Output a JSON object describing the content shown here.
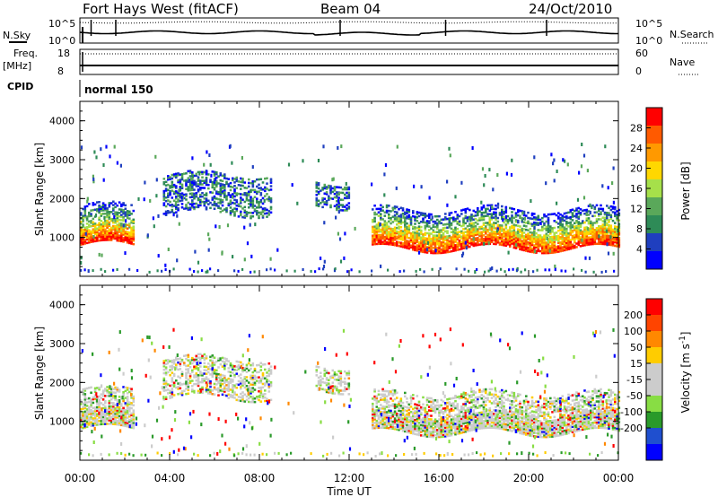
{
  "header": {
    "station": "Fort Hays West (fitACF)",
    "beam": "Beam 04",
    "date": "24/Oct/2010"
  },
  "noise_panel": {
    "left_label": "N.Sky",
    "right_label": "N.Search",
    "left_ticks": [
      "10^5",
      "10^0"
    ],
    "right_ticks": [
      "10^5",
      "10^0"
    ]
  },
  "freq_panel": {
    "left_label": "Freq.",
    "left_unit": "[MHz]",
    "right_label": "Nave",
    "left_ticks": [
      "18",
      "8"
    ],
    "right_ticks": [
      "60",
      "0"
    ]
  },
  "cpid": {
    "label": "CPID",
    "program": "normal 150"
  },
  "colors": {
    "power_scale": [
      "#0000ff",
      "#1f3fbf",
      "#2e8b57",
      "#5aa85a",
      "#a6e04a",
      "#ffd700",
      "#ff9900",
      "#ff5a00",
      "#ff0000"
    ],
    "velocity_scale": [
      "#0000ff",
      "#1f4fcf",
      "#2a9a2a",
      "#88dd44",
      "#cccccc",
      "#cccccc",
      "#ffcc00",
      "#ff8800",
      "#ff4400",
      "#ff0000"
    ]
  },
  "chart_data": [
    {
      "type": "heatmap",
      "name": "power",
      "xlabel": "",
      "ylabel": "Slant Range [km]",
      "xlim": [
        0,
        24
      ],
      "ylim": [
        0,
        4500
      ],
      "y_ticks": [
        1000,
        2000,
        3000,
        4000
      ],
      "x_ticks": [
        "00:00",
        "04:00",
        "08:00",
        "12:00",
        "16:00",
        "20:00",
        "00:00"
      ],
      "colorbar": {
        "label": "Power [dB]",
        "ticks": [
          4,
          8,
          12,
          16,
          20,
          24,
          28
        ],
        "min": 0,
        "max": 32
      },
      "bands": [
        {
          "t": [
            0.0,
            2.4
          ],
          "r_low": 800,
          "r_high": 1800,
          "level": "mixed"
        },
        {
          "t": [
            3.7,
            8.5
          ],
          "r_low": 1600,
          "r_high": 2600,
          "level": "low"
        },
        {
          "t": [
            10.5,
            12.0
          ],
          "r_low": 1800,
          "r_high": 2400,
          "level": "low"
        },
        {
          "t": [
            13.0,
            24.0
          ],
          "r_low": 700,
          "r_high": 1700,
          "level": "mixed"
        }
      ]
    },
    {
      "type": "heatmap",
      "name": "velocity",
      "xlabel": "Time UT",
      "ylabel": "Slant Range [km]",
      "xlim": [
        0,
        24
      ],
      "ylim": [
        0,
        4500
      ],
      "y_ticks": [
        1000,
        2000,
        3000,
        4000
      ],
      "x_ticks": [
        "00:00",
        "04:00",
        "08:00",
        "12:00",
        "16:00",
        "20:00",
        "00:00"
      ],
      "colorbar": {
        "label": "Velocity [m s^-1]",
        "ticks": [
          "200",
          "100",
          "50",
          "15",
          "-15",
          "-50",
          "-100",
          "-200"
        ]
      },
      "bands": [
        {
          "t": [
            0.0,
            2.4
          ],
          "r_low": 800,
          "r_high": 1800,
          "level": "mixed"
        },
        {
          "t": [
            3.7,
            8.5
          ],
          "r_low": 1600,
          "r_high": 2600,
          "level": "low"
        },
        {
          "t": [
            10.5,
            12.0
          ],
          "r_low": 1800,
          "r_high": 2400,
          "level": "low"
        },
        {
          "t": [
            13.0,
            24.0
          ],
          "r_low": 700,
          "r_high": 1700,
          "level": "mixed"
        }
      ]
    }
  ]
}
